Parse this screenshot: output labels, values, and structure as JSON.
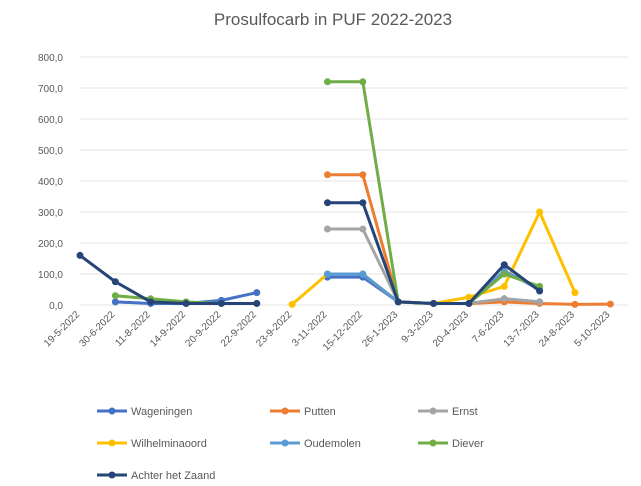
{
  "chart_data": {
    "type": "line",
    "title": "Prosulfocarb in PUF 2022-2023",
    "xlabel": "",
    "ylabel": "",
    "categories": [
      "19-5-2022",
      "30-6-2022",
      "11-8-2022",
      "14-9-2022",
      "20-9-2022",
      "22-9-2022",
      "23-9-2022",
      "3-11-2022",
      "15-12-2022",
      "26-1-2023",
      "9-3-2023",
      "20-4-2023",
      "7-6-2023",
      "13-7-2023",
      "24-8-2023",
      "5-10-2023"
    ],
    "y_tick_labels": [
      "0,0",
      "100,0",
      "200,0",
      "300,0",
      "400,0",
      "500,0",
      "600,0",
      "700,0",
      "800,0"
    ],
    "ylim": [
      0,
      800
    ],
    "grid": true,
    "legend_position": "bottom",
    "series": [
      {
        "name": "Wageningen",
        "color": "#4472C4",
        "values": [
          null,
          10,
          5,
          5,
          15,
          40,
          null,
          90,
          90,
          10,
          5,
          5,
          20,
          10,
          null,
          null
        ]
      },
      {
        "name": "Putten",
        "color": "#ED7D31",
        "values": [
          null,
          null,
          null,
          null,
          null,
          null,
          null,
          420,
          420,
          10,
          5,
          5,
          10,
          5,
          2,
          3
        ]
      },
      {
        "name": "Ernst",
        "color": "#A5A5A5",
        "values": [
          null,
          null,
          null,
          null,
          null,
          null,
          null,
          245,
          245,
          10,
          5,
          5,
          20,
          10,
          null,
          null
        ]
      },
      {
        "name": "Wilhelminaoord",
        "color": "#FFC000",
        "values": [
          null,
          null,
          null,
          null,
          null,
          null,
          2,
          100,
          100,
          10,
          5,
          25,
          60,
          300,
          40,
          null
        ]
      },
      {
        "name": "Oudemolen",
        "color": "#5B9BD5",
        "values": [
          null,
          null,
          null,
          null,
          null,
          null,
          null,
          100,
          100,
          10,
          5,
          5,
          110,
          50,
          null,
          null
        ]
      },
      {
        "name": "Diever",
        "color": "#70AD47",
        "values": [
          null,
          30,
          20,
          10,
          5,
          5,
          null,
          720,
          720,
          10,
          5,
          5,
          100,
          60,
          null,
          null
        ]
      },
      {
        "name": "Achter het Zaand",
        "color": "#264478",
        "values": [
          160,
          75,
          10,
          5,
          5,
          5,
          null,
          330,
          330,
          10,
          5,
          5,
          130,
          45,
          null,
          null
        ]
      }
    ]
  }
}
